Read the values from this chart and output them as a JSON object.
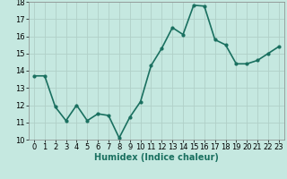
{
  "x": [
    0,
    1,
    2,
    3,
    4,
    5,
    6,
    7,
    8,
    9,
    10,
    11,
    12,
    13,
    14,
    15,
    16,
    17,
    18,
    19,
    20,
    21,
    22,
    23
  ],
  "y": [
    13.7,
    13.7,
    11.9,
    11.1,
    12.0,
    11.1,
    11.5,
    11.4,
    10.1,
    11.3,
    12.2,
    14.3,
    15.3,
    16.5,
    16.1,
    17.8,
    17.75,
    15.8,
    15.5,
    14.4,
    14.4,
    14.6,
    15.0,
    15.4
  ],
  "line_color": "#1a7060",
  "marker": "o",
  "marker_size": 2,
  "bg_color": "#c5e8e0",
  "grid_color": "#b0d0c8",
  "xlabel": "Humidex (Indice chaleur)",
  "xlim": [
    -0.5,
    23.5
  ],
  "ylim": [
    10,
    18
  ],
  "yticks": [
    10,
    11,
    12,
    13,
    14,
    15,
    16,
    17,
    18
  ],
  "xticks": [
    0,
    1,
    2,
    3,
    4,
    5,
    6,
    7,
    8,
    9,
    10,
    11,
    12,
    13,
    14,
    15,
    16,
    17,
    18,
    19,
    20,
    21,
    22,
    23
  ],
  "xlabel_fontsize": 7,
  "tick_fontsize": 6,
  "line_width": 1.2
}
